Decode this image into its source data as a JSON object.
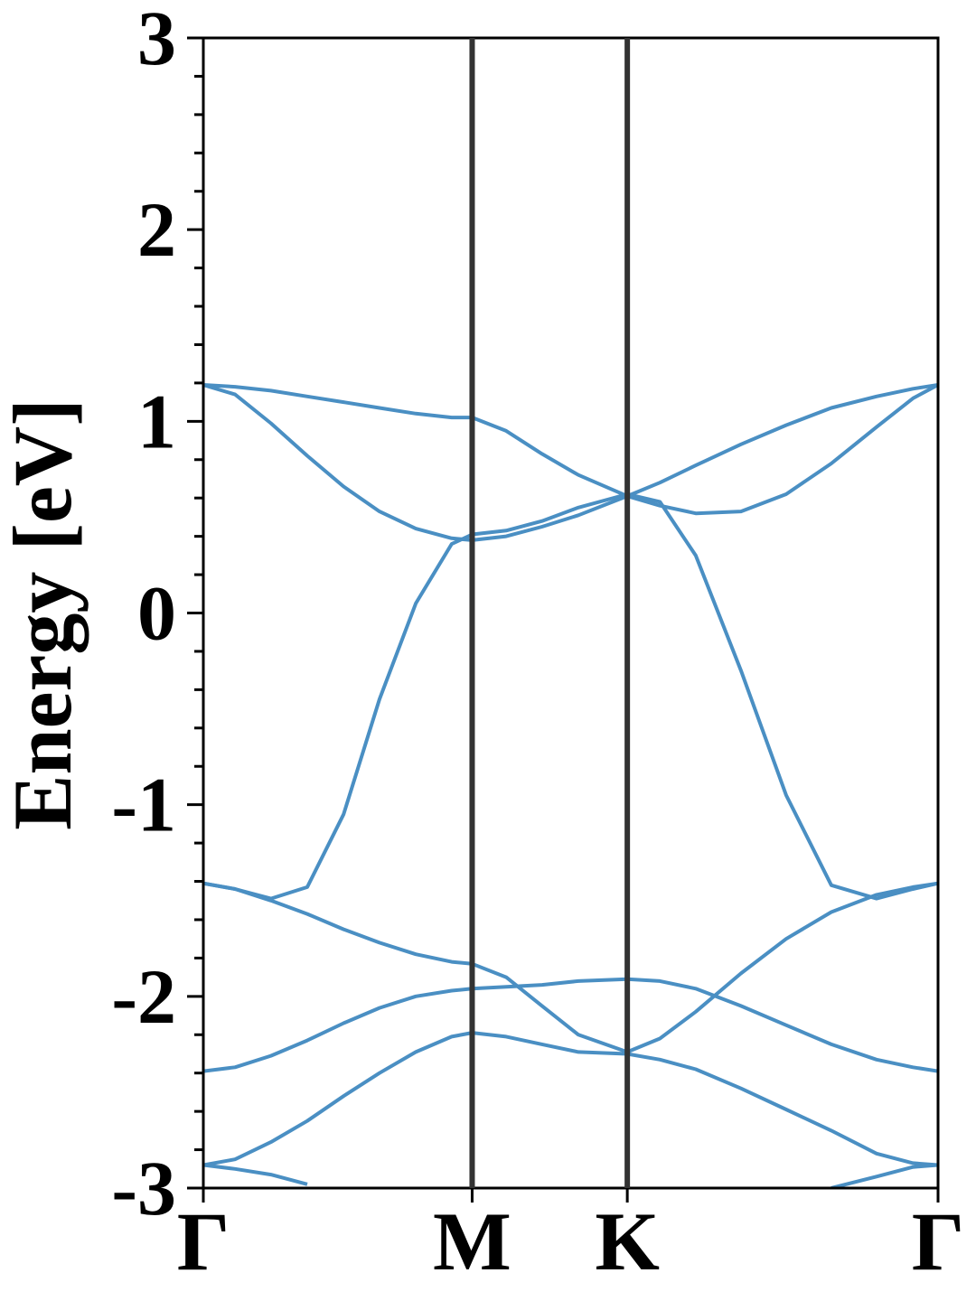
{
  "chart_data": {
    "type": "line",
    "ylabel": "Energy [eV]",
    "x": [
      0,
      0.068,
      0.145,
      0.223,
      0.301,
      0.378,
      0.456,
      0.533,
      0.577,
      0.65,
      0.727,
      0.805,
      0.91,
      0.98,
      1.057,
      1.154,
      1.251,
      1.348,
      1.445,
      1.523,
      1.577
    ],
    "xlim": [
      0,
      1.577
    ],
    "xticks": [
      {
        "value": 0,
        "label": "Γ"
      },
      {
        "value": 0.577,
        "label": "M"
      },
      {
        "value": 0.91,
        "label": "K"
      },
      {
        "value": 1.577,
        "label": "Γ"
      }
    ],
    "kpoint_lines": true,
    "ylim": [
      -3,
      3
    ],
    "yticks": [
      -3,
      -2,
      -1,
      0,
      1,
      2,
      3
    ],
    "yminorticks": [
      -2.8,
      -2.6,
      -2.4,
      -2.2,
      -1.8,
      -1.6,
      -1.4,
      -1.2,
      -0.8,
      -0.6,
      -0.4,
      -0.2,
      0.2,
      0.4,
      0.6,
      0.8,
      1.2,
      1.4,
      1.6,
      1.8,
      2.2,
      2.4,
      2.6,
      2.8
    ],
    "color": "#4a8fc3",
    "series": [
      {
        "values": [
          1.19,
          1.18,
          1.16,
          1.13,
          1.1,
          1.07,
          1.04,
          1.02,
          1.02,
          0.95,
          0.83,
          0.72,
          0.61,
          0.68,
          0.77,
          0.88,
          0.98,
          1.07,
          1.13,
          1.17,
          1.19
        ]
      },
      {
        "values": [
          1.19,
          1.14,
          0.99,
          0.82,
          0.66,
          0.53,
          0.44,
          0.39,
          0.38,
          0.4,
          0.45,
          0.51,
          0.61,
          0.56,
          0.52,
          0.53,
          0.62,
          0.78,
          0.97,
          1.12,
          1.19
        ]
      },
      {
        "values": [
          -1.41,
          -1.44,
          -1.49,
          -1.43,
          -1.05,
          -0.45,
          0.05,
          0.36,
          0.41,
          0.43,
          0.48,
          0.55,
          0.62,
          0.58,
          0.3,
          -0.3,
          -0.95,
          -1.42,
          -1.49,
          -1.44,
          -1.41
        ]
      },
      {
        "values": [
          -1.41,
          -1.44,
          -1.5,
          -1.57,
          -1.65,
          -1.72,
          -1.78,
          -1.82,
          -1.83,
          -1.9,
          -2.05,
          -2.2,
          -2.29,
          -2.22,
          -2.08,
          -1.88,
          -1.7,
          -1.56,
          -1.47,
          -1.43,
          -1.41
        ]
      },
      {
        "values": [
          -2.39,
          -2.37,
          -2.31,
          -2.23,
          -2.14,
          -2.06,
          -2.0,
          -1.97,
          -1.96,
          -1.95,
          -1.94,
          -1.92,
          -1.91,
          -1.92,
          -1.96,
          -2.05,
          -2.15,
          -2.25,
          -2.33,
          -2.37,
          -2.39
        ]
      },
      {
        "values": [
          -2.88,
          -2.85,
          -2.76,
          -2.65,
          -2.52,
          -2.4,
          -2.29,
          -2.21,
          -2.19,
          -2.21,
          -2.25,
          -2.29,
          -2.3,
          -2.33,
          -2.38,
          -2.48,
          -2.59,
          -2.7,
          -2.82,
          -2.87,
          -2.88
        ]
      },
      {
        "values": [
          -2.88,
          -2.9,
          -2.93,
          -2.98,
          null,
          null,
          null,
          null,
          null,
          null,
          null,
          null,
          null,
          null,
          null,
          null,
          null,
          -3.0,
          -2.94,
          -2.89,
          -2.88
        ]
      }
    ]
  }
}
